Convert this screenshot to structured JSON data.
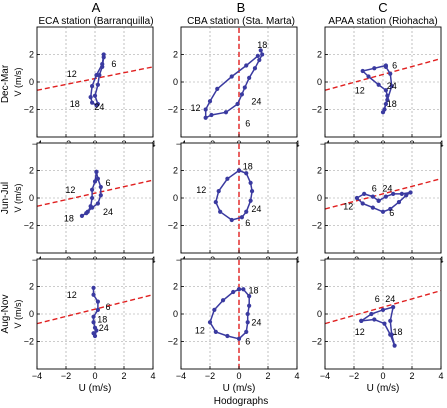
{
  "figure": {
    "xlabel_bottom": "Hodographs",
    "columns": [
      {
        "letter": "A",
        "station": "ECA station (Barranquilla)"
      },
      {
        "letter": "B",
        "station": "CBA station (Sta. Marta)"
      },
      {
        "letter": "C",
        "station": "APAA station (Riohacha)"
      }
    ],
    "rows": [
      "Dec-Mar",
      "Jun-Jul",
      "Aug-Nov"
    ],
    "colors": {
      "hodograph": "#3a3aa0",
      "coastline": "#e02020",
      "grid": "#9a9a9a"
    }
  },
  "chart_data": [
    {
      "type": "line",
      "panel": "A-Dec-Mar",
      "title": "ECA station (Barranquilla)",
      "row": "Dec-Mar",
      "xlabel": "",
      "ylabel": "V (m/s)",
      "xlim": [
        -4,
        4
      ],
      "ylim": [
        -4,
        4
      ],
      "xticks": [
        -4,
        -2,
        0,
        2,
        4
      ],
      "yticks": [
        -2,
        0,
        2
      ],
      "grid": true,
      "x": [
        0.6,
        0.5,
        0.1,
        -0.2,
        -0.3,
        -0.2,
        0.1,
        0.2,
        0.0,
        0.2,
        0.3,
        0.5,
        0.6
      ],
      "y": [
        2.0,
        1.3,
        0.5,
        -0.3,
        -1.1,
        -1.5,
        -1.7,
        -1.6,
        -1.0,
        -0.2,
        0.5,
        1.1,
        1.8
      ],
      "hour_labels": [
        {
          "text": "6",
          "x": 1.3,
          "y": 1.3
        },
        {
          "text": "12",
          "x": -1.6,
          "y": 0.6
        },
        {
          "text": "18",
          "x": -1.4,
          "y": -1.6
        },
        {
          "text": "24",
          "x": 0.3,
          "y": -1.8
        }
      ],
      "coastline": {
        "x": [
          -4,
          4
        ],
        "y": [
          -0.6,
          1.1
        ]
      }
    },
    {
      "type": "line",
      "panel": "B-Dec-Mar",
      "title": "CBA station (Sta. Marta)",
      "row": "Dec-Mar",
      "xlabel": "",
      "ylabel": "",
      "xlim": [
        -4,
        4
      ],
      "ylim": [
        -4,
        4
      ],
      "xticks": [
        -4,
        -2,
        0,
        2,
        4
      ],
      "yticks": [
        -2,
        0,
        2
      ],
      "grid": true,
      "x": [
        1.3,
        0.5,
        -0.5,
        -1.5,
        -2.0,
        -2.3,
        -2.3,
        -1.9,
        -0.9,
        -0.1,
        0.2,
        0.4,
        0.7,
        1.1,
        1.4,
        1.6,
        1.5
      ],
      "y": [
        1.9,
        1.2,
        0.4,
        -0.5,
        -1.4,
        -2.0,
        -2.6,
        -2.4,
        -2.2,
        -1.6,
        -0.9,
        -0.4,
        0.3,
        1.0,
        1.6,
        2.0,
        2.3
      ],
      "hour_labels": [
        {
          "text": "18",
          "x": 1.6,
          "y": 2.7
        },
        {
          "text": "12",
          "x": -3.0,
          "y": -1.9
        },
        {
          "text": "24",
          "x": 1.2,
          "y": -1.4
        },
        {
          "text": "6",
          "x": 0.6,
          "y": -3.0
        }
      ],
      "coastline": {
        "x": [
          0,
          0
        ],
        "y": [
          -4,
          4
        ]
      }
    },
    {
      "type": "line",
      "panel": "C-Dec-Mar",
      "title": "APAA station (Riohacha)",
      "row": "Dec-Mar",
      "xlabel": "",
      "ylabel": "",
      "xlim": [
        -4,
        4
      ],
      "ylim": [
        -4,
        4
      ],
      "xticks": [
        -4,
        -2,
        0,
        2,
        4
      ],
      "yticks": [
        -2,
        0,
        2
      ],
      "grid": true,
      "x": [
        0.2,
        -0.6,
        -1.4,
        -1.0,
        -0.3,
        0.2,
        0.3,
        0.2,
        0.1,
        0.0,
        0.3,
        0.6,
        0.5,
        0.2
      ],
      "y": [
        1.2,
        1.0,
        0.8,
        0.4,
        -0.2,
        -0.6,
        -1.0,
        -1.6,
        -2.0,
        -2.2,
        -1.3,
        -0.3,
        0.6,
        1.1
      ],
      "hour_labels": [
        {
          "text": "6",
          "x": 0.8,
          "y": 1.2
        },
        {
          "text": "12",
          "x": -1.6,
          "y": -0.6
        },
        {
          "text": "24",
          "x": 0.6,
          "y": -0.3
        },
        {
          "text": "18",
          "x": 0.6,
          "y": -1.6
        }
      ],
      "coastline": {
        "x": [
          -4,
          4
        ],
        "y": [
          -0.6,
          1.7
        ]
      }
    },
    {
      "type": "line",
      "panel": "A-Jun-Jul",
      "title": "",
      "row": "Jun-Jul",
      "xlabel": "",
      "ylabel": "V (m/s)",
      "xlim": [
        -4,
        4
      ],
      "ylim": [
        -4,
        4
      ],
      "xticks": [
        -4,
        -2,
        0,
        2,
        4
      ],
      "yticks": [
        -2,
        0,
        2
      ],
      "grid": true,
      "x": [
        0.1,
        0.0,
        -0.2,
        -0.2,
        -0.3,
        -0.5,
        -0.9,
        -0.6,
        -0.2,
        0.2,
        0.4,
        0.4,
        0.2,
        0.1
      ],
      "y": [
        1.9,
        1.2,
        0.6,
        0.0,
        -0.6,
        -1.0,
        -1.3,
        -1.1,
        -0.7,
        -0.4,
        0.2,
        0.8,
        1.4,
        1.9
      ],
      "hour_labels": [
        {
          "text": "6",
          "x": 0.9,
          "y": 1.1
        },
        {
          "text": "12",
          "x": -1.7,
          "y": 0.6
        },
        {
          "text": "18",
          "x": -1.8,
          "y": -1.5
        },
        {
          "text": "24",
          "x": 0.9,
          "y": -1.0
        }
      ],
      "coastline": {
        "x": [
          -4,
          4
        ],
        "y": [
          -0.6,
          1.3
        ]
      }
    },
    {
      "type": "line",
      "panel": "B-Jun-Jul",
      "title": "",
      "row": "Jun-Jul",
      "xlabel": "",
      "ylabel": "",
      "xlim": [
        -4,
        4
      ],
      "ylim": [
        -4,
        4
      ],
      "xticks": [
        -4,
        -2,
        0,
        2,
        4
      ],
      "yticks": [
        -2,
        0,
        2
      ],
      "grid": true,
      "x": [
        0.0,
        0.5,
        0.8,
        0.9,
        0.8,
        0.5,
        0.2,
        -0.5,
        -1.3,
        -1.6,
        -1.4,
        -0.8,
        0.0
      ],
      "y": [
        2.0,
        1.8,
        1.1,
        0.5,
        -0.2,
        -1.0,
        -1.4,
        -1.6,
        -1.0,
        -0.3,
        0.5,
        1.4,
        2.0
      ],
      "hour_labels": [
        {
          "text": "18",
          "x": 0.6,
          "y": 2.3
        },
        {
          "text": "12",
          "x": -2.6,
          "y": 0.6
        },
        {
          "text": "24",
          "x": 1.2,
          "y": -0.8
        },
        {
          "text": "6",
          "x": 0.6,
          "y": -1.8
        }
      ],
      "coastline": {
        "x": [
          0,
          0
        ],
        "y": [
          -4,
          4
        ]
      }
    },
    {
      "type": "line",
      "panel": "C-Jun-Jul",
      "title": "",
      "row": "Jun-Jul",
      "xlabel": "",
      "ylabel": "",
      "xlim": [
        -4,
        4
      ],
      "ylim": [
        -4,
        4
      ],
      "xticks": [
        -4,
        -2,
        0,
        2,
        4
      ],
      "yticks": [
        -2,
        0,
        2
      ],
      "grid": true,
      "x": [
        -0.3,
        -0.7,
        -1.3,
        -1.8,
        -1.4,
        -0.7,
        0.0,
        0.5,
        1.1,
        1.6,
        1.9,
        1.3,
        0.7,
        0.2,
        -0.3
      ],
      "y": [
        -0.2,
        0.1,
        0.3,
        0.0,
        -0.4,
        -0.7,
        -1.0,
        -0.8,
        -0.3,
        0.2,
        0.4,
        0.3,
        0.3,
        0.1,
        -0.2
      ],
      "hour_labels": [
        {
          "text": "6",
          "x": -0.6,
          "y": 0.7
        },
        {
          "text": "24",
          "x": 0.3,
          "y": 0.7
        },
        {
          "text": "12",
          "x": -2.4,
          "y": -0.6
        },
        {
          "text": "6",
          "x": 0.6,
          "y": -1.1
        }
      ],
      "coastline": {
        "x": [
          -4,
          4
        ],
        "y": [
          -0.8,
          1.4
        ]
      }
    },
    {
      "type": "line",
      "panel": "A-Aug-Nov",
      "title": "",
      "row": "Aug-Nov",
      "xlabel": "U (m/s)",
      "ylabel": "V (m/s)",
      "xlim": [
        -4,
        4
      ],
      "ylim": [
        -4,
        4
      ],
      "xticks": [
        -4,
        -2,
        0,
        2,
        4
      ],
      "yticks": [
        -2,
        0,
        2
      ],
      "grid": true,
      "x": [
        -0.1,
        -0.1,
        0.2,
        0.2,
        -0.1,
        -0.1,
        0.0,
        0.1,
        0.0,
        -0.1
      ],
      "y": [
        1.9,
        1.4,
        0.9,
        0.3,
        -0.2,
        -0.6,
        -1.0,
        -1.2,
        -1.6,
        -1.4
      ],
      "hour_labels": [
        {
          "text": "12",
          "x": -1.6,
          "y": 1.4
        },
        {
          "text": "6",
          "x": 0.9,
          "y": 0.5
        },
        {
          "text": "18",
          "x": 0.5,
          "y": -0.4
        },
        {
          "text": "24",
          "x": 0.6,
          "y": -1.0
        }
      ],
      "coastline": {
        "x": [
          -4,
          4
        ],
        "y": [
          -0.7,
          1.4
        ]
      }
    },
    {
      "type": "line",
      "panel": "B-Aug-Nov",
      "title": "",
      "row": "Aug-Nov",
      "xlabel": "U (m/s)",
      "ylabel": "",
      "xlim": [
        -4,
        4
      ],
      "ylim": [
        -4,
        4
      ],
      "xticks": [
        -4,
        -2,
        0,
        2,
        4
      ],
      "yticks": [
        -2,
        0,
        2
      ],
      "grid": true,
      "x": [
        0.0,
        0.3,
        0.7,
        0.7,
        0.6,
        0.6,
        0.5,
        0.0,
        -0.8,
        -1.6,
        -2.0,
        -1.7,
        -1.1,
        -0.4,
        0.0
      ],
      "y": [
        1.8,
        1.8,
        1.3,
        0.6,
        0.0,
        -0.6,
        -1.3,
        -1.8,
        -1.6,
        -1.3,
        -0.6,
        0.3,
        1.0,
        1.6,
        1.8
      ],
      "hour_labels": [
        {
          "text": "18",
          "x": 1.0,
          "y": 1.7
        },
        {
          "text": "24",
          "x": 1.2,
          "y": -0.6
        },
        {
          "text": "12",
          "x": -2.7,
          "y": -1.2
        },
        {
          "text": "6",
          "x": 0.6,
          "y": -2.0
        }
      ],
      "coastline": {
        "x": [
          0,
          0
        ],
        "y": [
          -4,
          4
        ]
      }
    },
    {
      "type": "line",
      "panel": "C-Aug-Nov",
      "title": "",
      "row": "Aug-Nov",
      "xlabel": "U (m/s)",
      "ylabel": "",
      "xlim": [
        -4,
        4
      ],
      "ylim": [
        -4,
        4
      ],
      "xticks": [
        -4,
        -2,
        0,
        2,
        4
      ],
      "yticks": [
        -2,
        0,
        2
      ],
      "grid": true,
      "x": [
        -1.5,
        -0.8,
        0.0,
        0.7,
        0.5,
        0.6,
        0.8,
        0.5,
        0.1,
        -0.6,
        -1.5
      ],
      "y": [
        -0.5,
        0.0,
        0.3,
        0.5,
        -0.5,
        -1.5,
        -2.3,
        -1.5,
        -0.7,
        -0.4,
        -0.5
      ],
      "hour_labels": [
        {
          "text": "6",
          "x": -0.4,
          "y": 1.1
        },
        {
          "text": "24",
          "x": 0.5,
          "y": 1.1
        },
        {
          "text": "12",
          "x": -1.6,
          "y": -1.3
        },
        {
          "text": "18",
          "x": 1.0,
          "y": -1.3
        }
      ],
      "coastline": {
        "x": [
          -4,
          4
        ],
        "y": [
          -0.7,
          1.7
        ]
      }
    }
  ]
}
